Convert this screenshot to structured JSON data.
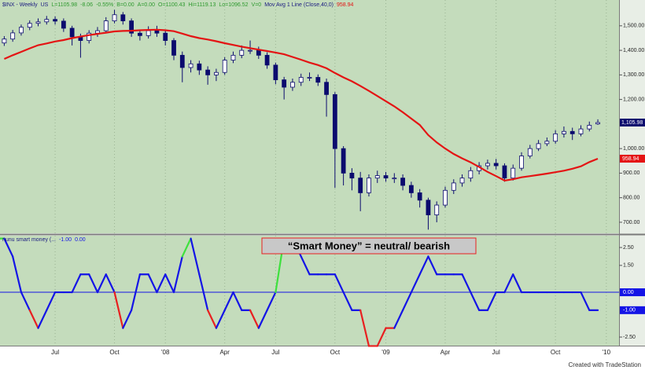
{
  "chart_data": [
    {
      "type": "candlestick",
      "header": [
        "$INX - Weekly",
        "US",
        "L=1105.98",
        "-8.06",
        "-0.55%",
        "B=0.00",
        "A=0.00",
        "O=1100.43",
        "Hi=1119.13",
        "Lo=1096.52",
        "V=0",
        "Mov Avg 1 Line (Close,40,0)"
      ],
      "categories": [
        null,
        null,
        null,
        null,
        null,
        null,
        "Jul",
        null,
        null,
        null,
        null,
        null,
        null,
        "Oct",
        null,
        null,
        null,
        null,
        null,
        "'08",
        null,
        null,
        null,
        null,
        null,
        null,
        "Apr",
        null,
        null,
        null,
        null,
        null,
        "Jul",
        null,
        null,
        null,
        null,
        null,
        null,
        "Oct",
        null,
        null,
        null,
        null,
        null,
        "'09",
        null,
        null,
        null,
        null,
        null,
        null,
        "Apr",
        null,
        null,
        null,
        null,
        null,
        "Jul",
        null,
        null,
        null,
        null,
        null,
        null,
        "Oct",
        null,
        null,
        null,
        null,
        null,
        "'10",
        null
      ],
      "open": [
        1430,
        1446,
        1471,
        1494,
        1510,
        1516,
        1526,
        1519,
        1490,
        1455,
        1440,
        1470,
        1480,
        1520,
        1545,
        1520,
        1470,
        1460,
        1480,
        1470,
        1440,
        1380,
        1330,
        1345,
        1320,
        1300,
        1310,
        1360,
        1380,
        1400,
        1400,
        1380,
        1340,
        1280,
        1250,
        1270,
        1290,
        1290,
        1270,
        1220,
        1000,
        900,
        880,
        820,
        880,
        890,
        880,
        880,
        850,
        820,
        790,
        730,
        770,
        830,
        860,
        880,
        910,
        930,
        940,
        930,
        880,
        920,
        970,
        1000,
        1020,
        1030,
        1060,
        1070,
        1060,
        1080,
        1100.43,
        null,
        null
      ],
      "high": [
        1458,
        1483,
        1505,
        1522,
        1530,
        1540,
        1538,
        1530,
        1500,
        1468,
        1482,
        1495,
        1535,
        1565,
        1556,
        1530,
        1485,
        1498,
        1500,
        1485,
        1450,
        1395,
        1360,
        1358,
        1335,
        1325,
        1372,
        1395,
        1420,
        1440,
        1415,
        1392,
        1350,
        1292,
        1285,
        1305,
        1310,
        1302,
        1285,
        1230,
        1010,
        920,
        905,
        895,
        910,
        905,
        900,
        895,
        865,
        835,
        800,
        785,
        845,
        875,
        895,
        925,
        945,
        955,
        958,
        940,
        935,
        985,
        1015,
        1035,
        1045,
        1075,
        1090,
        1085,
        1095,
        1110,
        1119.13,
        null,
        null
      ],
      "low": [
        1418,
        1435,
        1460,
        1482,
        1498,
        1505,
        1505,
        1475,
        1420,
        1370,
        1428,
        1455,
        1470,
        1510,
        1505,
        1455,
        1440,
        1448,
        1455,
        1420,
        1360,
        1270,
        1310,
        1300,
        1260,
        1275,
        1300,
        1348,
        1368,
        1385,
        1365,
        1325,
        1262,
        1200,
        1235,
        1255,
        1275,
        1255,
        1130,
        840,
        850,
        830,
        745,
        805,
        860,
        865,
        860,
        830,
        800,
        760,
        670,
        700,
        760,
        815,
        845,
        865,
        895,
        915,
        915,
        865,
        870,
        910,
        960,
        990,
        1010,
        1020,
        1045,
        1035,
        1050,
        1070,
        1096.52,
        null,
        null
      ],
      "close": [
        1446,
        1471,
        1494,
        1510,
        1516,
        1526,
        1519,
        1490,
        1455,
        1440,
        1470,
        1480,
        1520,
        1545,
        1520,
        1470,
        1460,
        1480,
        1470,
        1440,
        1380,
        1330,
        1345,
        1320,
        1300,
        1310,
        1360,
        1380,
        1400,
        1400,
        1380,
        1340,
        1280,
        1250,
        1270,
        1290,
        1290,
        1270,
        1220,
        1000,
        900,
        880,
        820,
        880,
        890,
        880,
        880,
        850,
        820,
        790,
        730,
        770,
        830,
        860,
        880,
        910,
        930,
        940,
        930,
        880,
        920,
        970,
        1000,
        1020,
        1030,
        1060,
        1070,
        1060,
        1080,
        1095,
        1105.98,
        null,
        null
      ],
      "up_color": "#ffffff",
      "down_color": "#0b0b6e",
      "last_price": {
        "value": 1105.98,
        "label": "1,105.98"
      },
      "series": [
        {
          "name": "Mov Avg 1 Line (Close,40,0)",
          "color": "#e41414",
          "last": 958.94,
          "values": [
            1365,
            1380,
            1394,
            1408,
            1421,
            1428,
            1436,
            1442,
            1450,
            1456,
            1462,
            1467,
            1472,
            1477,
            1479,
            1480,
            1482,
            1483,
            1484,
            1482,
            1478,
            1468,
            1458,
            1450,
            1444,
            1437,
            1429,
            1422,
            1415,
            1409,
            1403,
            1397,
            1391,
            1384,
            1373,
            1362,
            1350,
            1340,
            1327,
            1308,
            1290,
            1274,
            1255,
            1235,
            1214,
            1193,
            1172,
            1148,
            1122,
            1096,
            1055,
            1025,
            1000,
            978,
            960,
            944,
            925,
            905,
            888,
            870,
            875,
            883,
            888,
            893,
            898,
            904,
            910,
            918,
            928,
            945,
            958.94,
            null,
            null
          ]
        }
      ],
      "ylim": [
        655,
        1605
      ],
      "yticks": [
        {
          "value": 1500,
          "label": "1,500.00"
        },
        {
          "value": 1400,
          "label": "1,400.00"
        },
        {
          "value": 1300,
          "label": "1,300.00"
        },
        {
          "value": 1200,
          "label": "1,200.00"
        },
        {
          "value": 1000,
          "label": "1,000.00"
        },
        {
          "value": 900,
          "label": "900.00"
        },
        {
          "value": 800,
          "label": "800.00"
        },
        {
          "value": 700,
          "label": "700.00"
        }
      ],
      "footer": "Created with TradeStation"
    },
    {
      "type": "stepline",
      "title": "nunu smart money (...",
      "series": [
        {
          "color": "#1414e6",
          "high_color": "#3ee03e",
          "low_color": "#e82020",
          "high_level": 3,
          "low_level": -2,
          "last": {
            "value": -1,
            "label": "-1.00"
          },
          "values": [
            3,
            2,
            0,
            -1,
            -2,
            -1,
            0,
            0,
            0,
            1,
            1,
            0,
            1,
            0,
            -2,
            -1,
            1,
            1,
            0,
            1,
            0,
            2,
            3,
            1,
            -1,
            -2,
            -1,
            0,
            -1,
            -1,
            -2,
            -1,
            0,
            3,
            3,
            2,
            1,
            1,
            1,
            1,
            0,
            -1,
            -1,
            -3,
            -3,
            -2,
            -2,
            -1,
            0,
            1,
            2,
            1,
            1,
            1,
            1,
            0,
            -1,
            -1,
            0,
            0,
            1,
            0,
            0,
            0,
            0,
            0,
            0,
            0,
            0,
            -1,
            -1,
            null,
            null
          ]
        }
      ],
      "zero_line": {
        "value": 0,
        "label": "0.00"
      },
      "annotation": "“Smart Money” = neutral/ bearish",
      "ylim": [
        -2.98,
        3.16
      ],
      "yticks": [
        {
          "value": 2.5,
          "label": "2.50"
        },
        {
          "value": 1.5,
          "label": "1.50"
        },
        {
          "value": -2.5,
          "label": "-2.50"
        }
      ]
    }
  ]
}
